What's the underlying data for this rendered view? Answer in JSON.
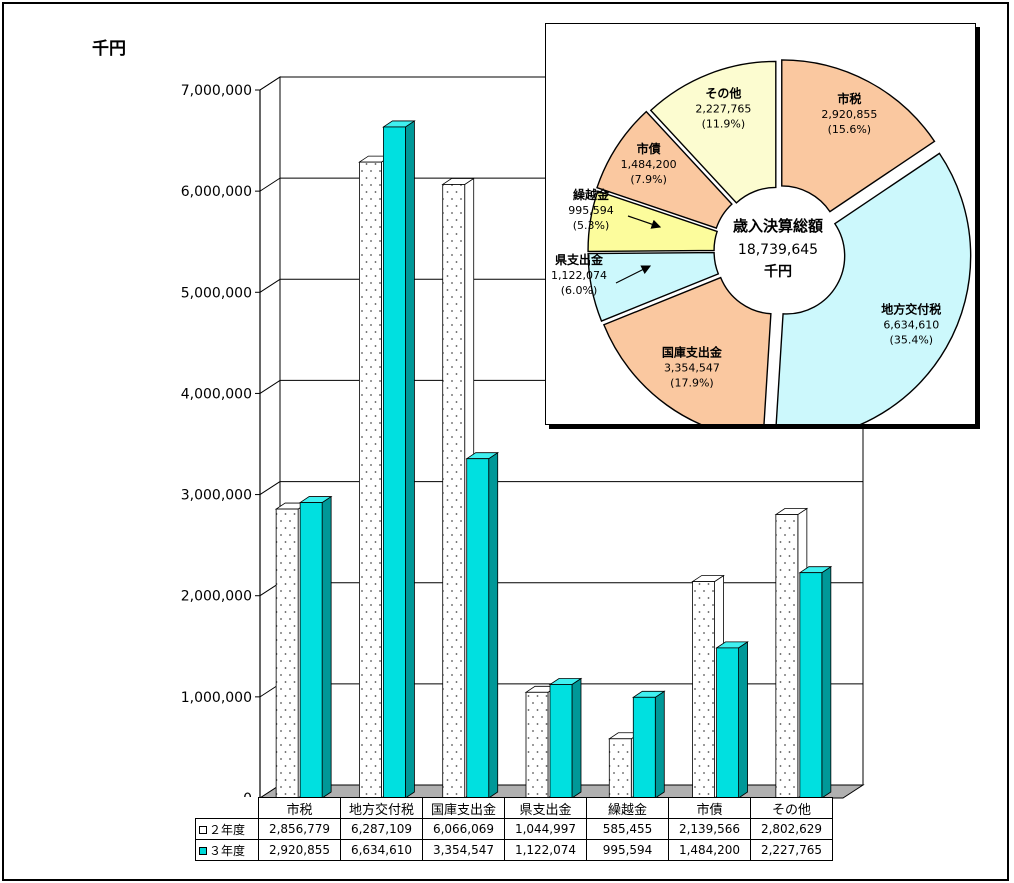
{
  "chart_data": [
    {
      "type": "bar",
      "unit_label": "千円",
      "categories": [
        "市税",
        "地方交付税",
        "国庫支出金",
        "県支出金",
        "繰越金",
        "市債",
        "その他"
      ],
      "series": [
        {
          "name": "２年度",
          "values": [
            2856779,
            6287109,
            6066069,
            1044997,
            585455,
            2139566,
            2802629
          ],
          "labels": [
            "2,856,779",
            "6,287,109",
            "6,066,069",
            "1,044,997",
            "585,455",
            "2,139,566",
            "2,802,629"
          ]
        },
        {
          "name": "３年度",
          "values": [
            2920855,
            6634610,
            3354547,
            1122074,
            995594,
            1484200,
            2227765
          ],
          "labels": [
            "2,920,855",
            "6,634,610",
            "3,354,547",
            "1,122,074",
            "995,594",
            "1,484,200",
            "2,227,765"
          ]
        }
      ],
      "ylim": [
        0,
        7000000
      ],
      "yticks": [
        0,
        1000000,
        2000000,
        3000000,
        4000000,
        5000000,
        6000000,
        7000000
      ],
      "ytick_labels": [
        "0",
        "1,000,000",
        "2,000,000",
        "3,000,000",
        "4,000,000",
        "5,000,000",
        "6,000,000",
        "7,000,000"
      ],
      "grid": true,
      "legend": "data-table",
      "colors": {
        "series1": "#ffffff",
        "series2": "#00e0e0"
      }
    },
    {
      "type": "pie",
      "donut": true,
      "center_title": "歳入決算総額",
      "center_value": "18,739,645",
      "center_unit": "千円",
      "slices": [
        {
          "label": "市税",
          "value": 2920855,
          "value_text": "2,920,855",
          "pct_text": "(15.6%)",
          "color": "#fac8a0"
        },
        {
          "label": "地方交付税",
          "value": 6634610,
          "value_text": "6,634,610",
          "pct_text": "(35.4%)",
          "color": "#ccf8fc"
        },
        {
          "label": "国庫支出金",
          "value": 3354547,
          "value_text": "3,354,547",
          "pct_text": "(17.9%)",
          "color": "#fac8a0"
        },
        {
          "label": "県支出金",
          "value": 1122074,
          "value_text": "1,122,074",
          "pct_text": "(6.0%)",
          "color": "#ccf8fc"
        },
        {
          "label": "繰越金",
          "value": 995594,
          "value_text": "995,594",
          "pct_text": "(5.3%)",
          "color": "#fcfc9c"
        },
        {
          "label": "市債",
          "value": 1484200,
          "value_text": "1,484,200",
          "pct_text": "(7.9%)",
          "color": "#fac8a0"
        },
        {
          "label": "その他",
          "value": 2227765,
          "value_text": "2,227,765",
          "pct_text": "(11.9%)",
          "color": "#fcfcd0"
        }
      ]
    }
  ]
}
